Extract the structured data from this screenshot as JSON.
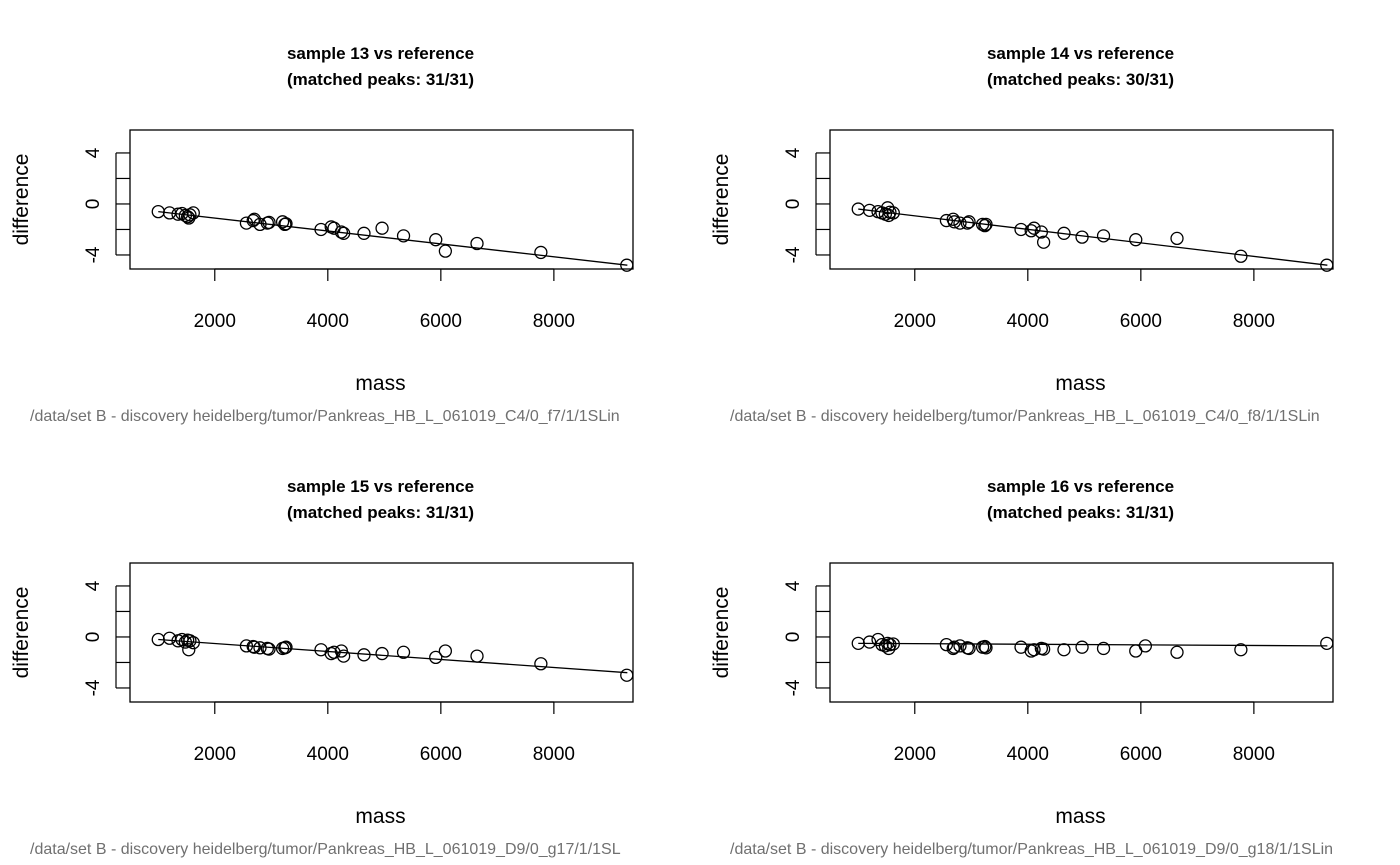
{
  "chart_data": [
    {
      "type": "scatter",
      "title": "sample 13 vs reference",
      "subtitle": "(matched peaks: 31/31)",
      "xlabel": "mass",
      "ylabel": "difference",
      "sub": "/data/set B - discovery heidelberg/tumor/Pankreas_HB_L_061019_C4/0_f7/1/1SLin",
      "xlim": [
        500,
        9400
      ],
      "ylim": [
        -5.1,
        5.8
      ],
      "xticks": [
        2000,
        4000,
        6000,
        8000
      ],
      "yticks": [
        -4,
        0,
        4
      ],
      "fit": {
        "x": [
          1000,
          9300
        ],
        "y": [
          -0.6,
          -4.8
        ]
      },
      "points": {
        "x": [
          1000,
          1200,
          1350,
          1420,
          1480,
          1520,
          1560,
          1620,
          2560,
          2680,
          2700,
          2800,
          2930,
          2960,
          3200,
          3240,
          3260,
          3880,
          4060,
          4110,
          4240,
          4280,
          4640,
          4960,
          5340,
          5910,
          6080,
          6640,
          7770,
          9290,
          1540
        ],
        "y": [
          -0.6,
          -0.7,
          -0.8,
          -0.75,
          -0.9,
          -1.0,
          -0.85,
          -0.7,
          -1.5,
          -1.3,
          -1.2,
          -1.6,
          -1.5,
          -1.45,
          -1.4,
          -1.6,
          -1.55,
          -2.0,
          -1.8,
          -1.9,
          -2.2,
          -2.3,
          -2.3,
          -1.9,
          -2.5,
          -2.8,
          -3.7,
          -3.1,
          -3.8,
          -4.8,
          -1.1
        ]
      }
    },
    {
      "type": "scatter",
      "title": "sample 14 vs reference",
      "subtitle": "(matched peaks: 30/31)",
      "xlabel": "mass",
      "ylabel": "difference",
      "sub": "/data/set B - discovery heidelberg/tumor/Pankreas_HB_L_061019_C4/0_f8/1/1SLin",
      "xlim": [
        500,
        9400
      ],
      "ylim": [
        -5.1,
        5.8
      ],
      "xticks": [
        2000,
        4000,
        6000,
        8000
      ],
      "yticks": [
        -4,
        0,
        4
      ],
      "fit": {
        "x": [
          1000,
          9300
        ],
        "y": [
          -0.4,
          -4.8
        ]
      },
      "points": {
        "x": [
          1000,
          1200,
          1350,
          1420,
          1480,
          1520,
          1560,
          1620,
          2560,
          2680,
          2700,
          2800,
          2930,
          2960,
          3200,
          3240,
          3260,
          3880,
          4060,
          4110,
          4240,
          4280,
          4640,
          4960,
          5340,
          5910,
          6640,
          7770,
          9290,
          1540
        ],
        "y": [
          -0.4,
          -0.5,
          -0.6,
          -0.7,
          -0.8,
          -0.3,
          -0.65,
          -0.7,
          -1.3,
          -1.2,
          -1.4,
          -1.5,
          -1.5,
          -1.4,
          -1.6,
          -1.7,
          -1.6,
          -2.0,
          -2.1,
          -1.9,
          -2.2,
          -3.0,
          -2.3,
          -2.6,
          -2.5,
          -2.8,
          -2.7,
          -4.1,
          -4.8,
          -0.9
        ]
      }
    },
    {
      "type": "scatter",
      "title": "sample 15 vs reference",
      "subtitle": "(matched peaks: 31/31)",
      "xlabel": "mass",
      "ylabel": "difference",
      "sub": "/data/set B - discovery heidelberg/tumor/Pankreas_HB_L_061019_D9/0_g17/1/1SL",
      "xlim": [
        500,
        9400
      ],
      "ylim": [
        -5.1,
        5.8
      ],
      "xticks": [
        2000,
        4000,
        6000,
        8000
      ],
      "yticks": [
        -4,
        0,
        4
      ],
      "fit": {
        "x": [
          1000,
          9300
        ],
        "y": [
          -0.2,
          -2.8
        ]
      },
      "points": {
        "x": [
          1000,
          1200,
          1350,
          1420,
          1480,
          1520,
          1560,
          1620,
          2560,
          2680,
          2700,
          2800,
          2930,
          2960,
          3200,
          3240,
          3260,
          3880,
          4060,
          4110,
          4240,
          4280,
          4640,
          4960,
          5340,
          5910,
          6080,
          6640,
          7770,
          9290,
          1540
        ],
        "y": [
          -0.2,
          -0.1,
          -0.3,
          -0.2,
          -0.4,
          -0.25,
          -0.3,
          -0.45,
          -0.7,
          -0.75,
          -0.8,
          -0.85,
          -0.9,
          -0.95,
          -0.9,
          -0.85,
          -0.8,
          -1.0,
          -1.3,
          -1.2,
          -1.1,
          -1.5,
          -1.4,
          -1.3,
          -1.2,
          -1.6,
          -1.1,
          -1.5,
          -2.1,
          -3.0,
          -1.0
        ]
      }
    },
    {
      "type": "scatter",
      "title": "sample 16 vs reference",
      "subtitle": "(matched peaks: 31/31)",
      "xlabel": "mass",
      "ylabel": "difference",
      "sub": "/data/set B - discovery heidelberg/tumor/Pankreas_HB_L_061019_D9/0_g18/1/1SLin",
      "xlim": [
        500,
        9400
      ],
      "ylim": [
        -5.1,
        5.8
      ],
      "xticks": [
        2000,
        4000,
        6000,
        8000
      ],
      "yticks": [
        -4,
        0,
        4
      ],
      "fit": {
        "x": [
          1000,
          9300
        ],
        "y": [
          -0.5,
          -0.7
        ]
      },
      "points": {
        "x": [
          1000,
          1200,
          1350,
          1420,
          1480,
          1520,
          1560,
          1620,
          2560,
          2680,
          2700,
          2800,
          2930,
          2960,
          3200,
          3240,
          3260,
          3880,
          4060,
          4110,
          4240,
          4280,
          4640,
          4960,
          5340,
          5910,
          6080,
          6640,
          7770,
          9290,
          1540
        ],
        "y": [
          -0.5,
          -0.4,
          -0.2,
          -0.6,
          -0.7,
          -0.5,
          -0.6,
          -0.55,
          -0.6,
          -0.9,
          -0.8,
          -0.7,
          -0.85,
          -0.9,
          -0.8,
          -0.75,
          -0.85,
          -0.8,
          -1.1,
          -1.0,
          -0.9,
          -0.95,
          -1.0,
          -0.8,
          -0.9,
          -1.1,
          -0.7,
          -1.2,
          -1.0,
          -0.5,
          -0.9
        ]
      }
    }
  ]
}
